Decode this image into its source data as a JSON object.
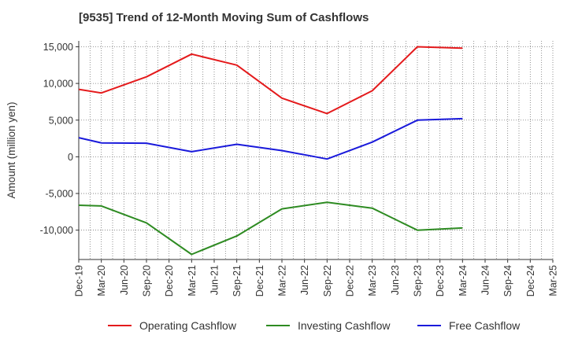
{
  "chart_data": {
    "type": "line",
    "title": "[9535]  Trend of 12-Month Moving Sum of Cashflows",
    "xlabel": "",
    "ylabel": "Amount (million yen)",
    "categories": [
      "Dec-19",
      "Mar-20",
      "Jun-20",
      "Sep-20",
      "Dec-20",
      "Mar-21",
      "Jun-21",
      "Sep-21",
      "Dec-21",
      "Mar-22",
      "Jun-22",
      "Sep-22",
      "Dec-22",
      "Mar-23",
      "Jun-23",
      "Sep-23",
      "Dec-23",
      "Mar-24",
      "Jun-24",
      "Sep-24",
      "Dec-24",
      "Mar-25"
    ],
    "ylim": [
      -14000,
      15800
    ],
    "yticks": [
      15000,
      10000,
      5000,
      0,
      -5000,
      -10000
    ],
    "ytick_labels": [
      "15,000",
      "10,000",
      "5,000",
      "0",
      "-5,000",
      "-10,000"
    ],
    "grid": true,
    "legend_position": "bottom",
    "series": [
      {
        "name": "Operating Cashflow",
        "color": "#e41a1c",
        "values": [
          9200,
          8700,
          null,
          10900,
          null,
          14000,
          null,
          12500,
          null,
          8000,
          null,
          5900,
          null,
          9000,
          null,
          15000,
          null,
          14800,
          null,
          null,
          null,
          null
        ]
      },
      {
        "name": "Investing Cashflow",
        "color": "#2e8b22",
        "values": [
          -6600,
          -6700,
          null,
          -9000,
          null,
          -13300,
          null,
          -10800,
          null,
          -7100,
          null,
          -6200,
          null,
          -7000,
          null,
          -10000,
          null,
          -9700,
          null,
          null,
          null,
          null
        ]
      },
      {
        "name": "Free Cashflow",
        "color": "#1a1adb",
        "values": [
          2600,
          1900,
          null,
          1850,
          null,
          700,
          null,
          1700,
          null,
          850,
          null,
          -300,
          null,
          2000,
          null,
          5000,
          null,
          5200,
          null,
          null,
          null,
          null
        ]
      }
    ]
  }
}
